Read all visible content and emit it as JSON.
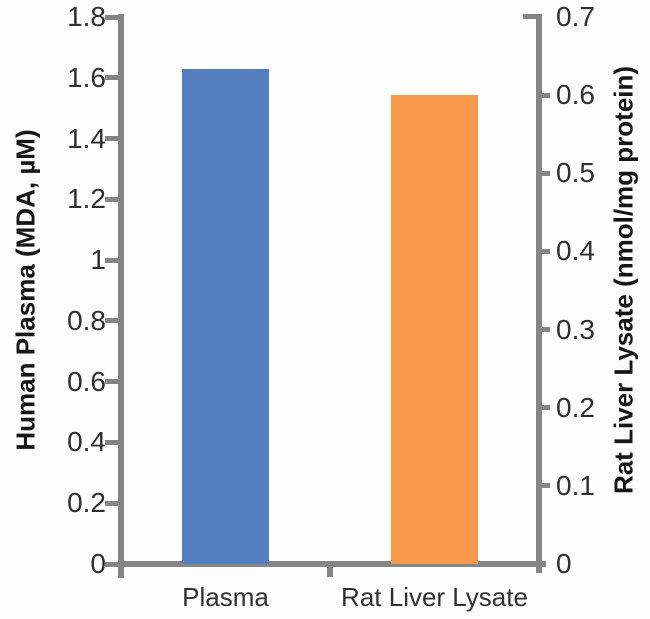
{
  "chart_data": {
    "type": "bar",
    "title": "",
    "grid": false,
    "legend": "none",
    "axis_color": "#858585",
    "categories": [
      "Plasma",
      "Rat Liver Lysate"
    ],
    "series": [
      {
        "name": "Plasma",
        "axis": "left",
        "value": 1.63,
        "color": "#527EBE"
      },
      {
        "name": "Rat Liver Lysate",
        "axis": "right",
        "value": 0.6,
        "color": "#F89A4C"
      }
    ],
    "left_axis": {
      "label": "Human Plasma (MDA, µM)",
      "min": 0,
      "max": 1.8,
      "ticks": [
        "0",
        "0.2",
        "0.4",
        "0.6",
        "0.8",
        "1",
        "1.2",
        "1.4",
        "1.6",
        "1.8"
      ]
    },
    "right_axis": {
      "label": "Rat Liver Lysate (nmol/mg protein)",
      "min": 0,
      "max": 0.7,
      "ticks": [
        "0",
        "0.1",
        "0.2",
        "0.3",
        "0.4",
        "0.5",
        "0.6",
        "0.7"
      ]
    }
  }
}
